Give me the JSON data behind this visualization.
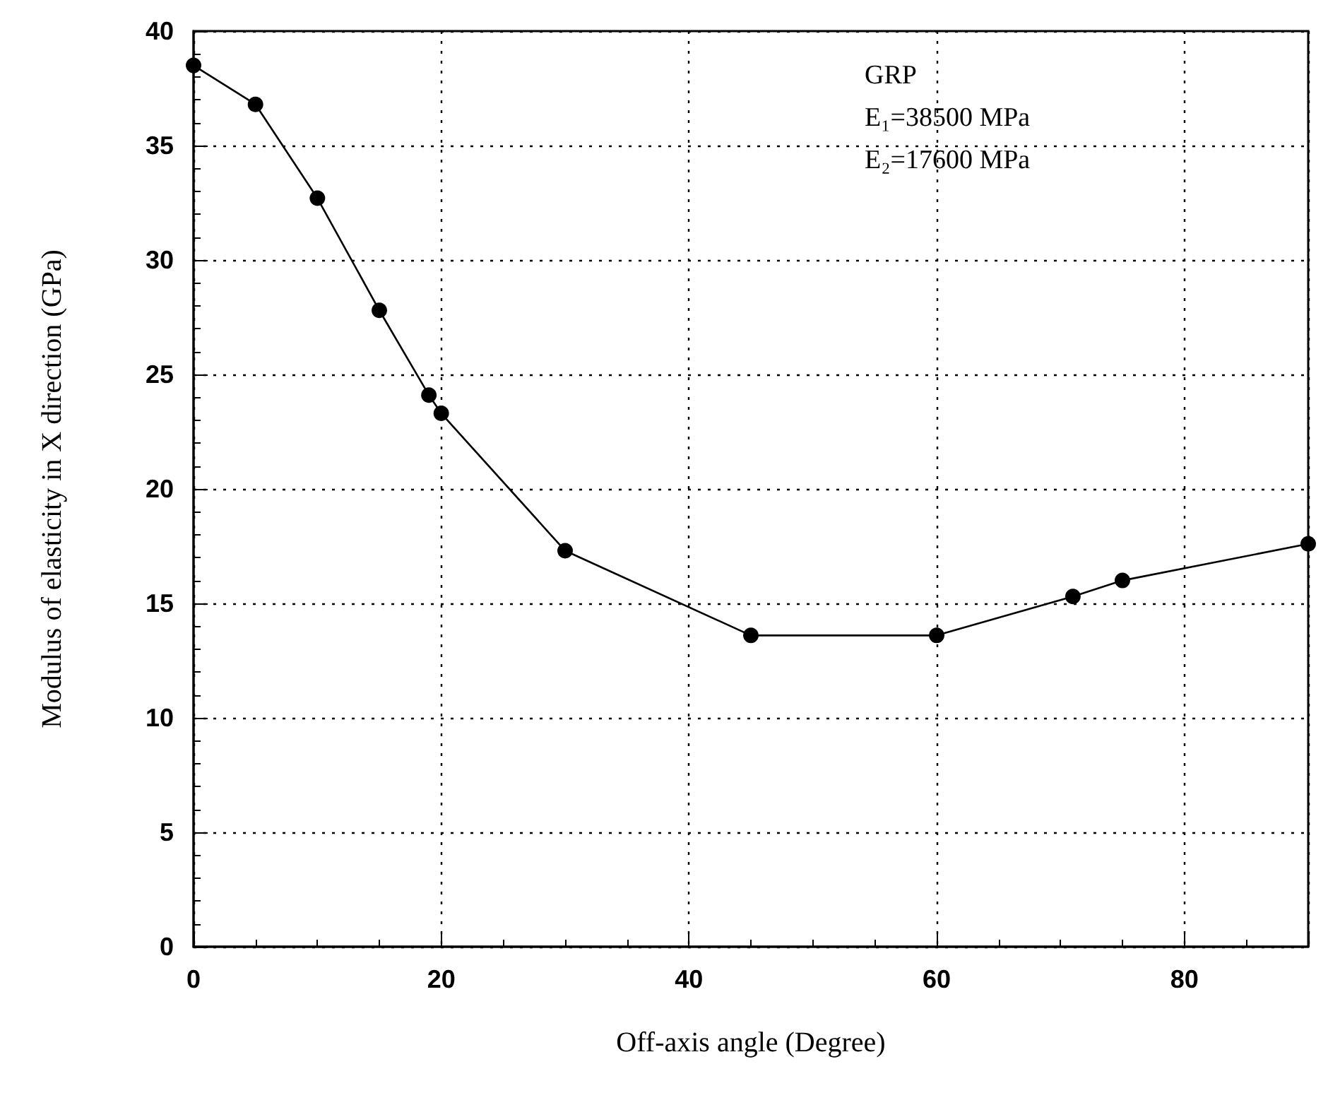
{
  "chart_data": {
    "type": "line",
    "xlabel": "Off-axis angle (Degree)",
    "ylabel": "Modulus of elasticity in X direction (GPa)",
    "x": [
      0,
      5,
      10,
      15,
      19,
      20,
      30,
      45,
      60,
      71,
      75,
      90
    ],
    "series": [
      {
        "color": "#000000",
        "values": [
          38.5,
          36.8,
          32.7,
          27.8,
          24.1,
          23.3,
          17.3,
          13.6,
          13.6,
          15.3,
          16.0,
          17.6
        ]
      }
    ],
    "xlim": [
      0,
      90
    ],
    "xticks": [
      0,
      20,
      40,
      60,
      80
    ],
    "ylim": [
      0,
      40
    ],
    "yticks": [
      0,
      5,
      10,
      15,
      20,
      25,
      30,
      35,
      40
    ],
    "grid": true,
    "marker": "circle",
    "line_style": "solid",
    "annotations": [
      "GRP",
      "E₁=38500 MPa",
      "E₂=17600 MPa"
    ]
  }
}
